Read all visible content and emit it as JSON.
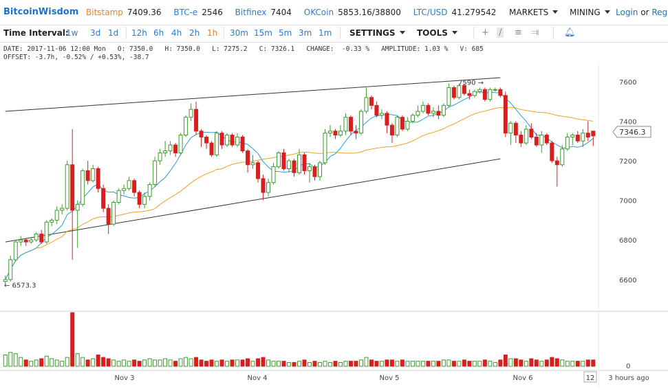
{
  "header": {
    "brand": "BitcoinWisdom",
    "tickers": [
      {
        "exchange": "Bitstamp",
        "price": "7409.36",
        "active": true
      },
      {
        "exchange": "BTC-e",
        "price": "2546",
        "active": false
      },
      {
        "exchange": "Bitfinex",
        "price": "7404",
        "active": false
      },
      {
        "exchange": "OKCoin",
        "price": "5853.16/38800",
        "active": false
      },
      {
        "exchange": "LTC/USD",
        "price": "41.279542",
        "active": false
      }
    ],
    "markets_label": "MARKETS",
    "mining_label": "MINING",
    "login_label": "Login",
    "or_label": "or",
    "register_label": "Regis"
  },
  "toolbar": {
    "interval_label": "Time Interval:",
    "intervals": [
      "1w",
      "3d",
      "1d",
      "12h",
      "6h",
      "4h",
      "2h",
      "1h",
      "30m",
      "15m",
      "5m",
      "3m",
      "1m"
    ],
    "active_interval": "1h",
    "settings_label": "SETTINGS",
    "tools_label": "TOOLS"
  },
  "info": {
    "line1": "DATE: 2017-11-06 12:00 Mon   O: 7350.0   H: 7350.0   L: 7275.2   C: 7326.1   CHANGE:  -0.33 %   AMPLITUDE: 1.03 %   V: 685",
    "line2": "OFFSET: -3.7h, -0.52% / +0.53%, -38.7"
  },
  "colors": {
    "up": "#3a9a2a",
    "down": "#d81e1e",
    "ma_fast": "#2a9bd8",
    "ma_slow": "#f0a020",
    "trend": "#333333",
    "accent": "#1a73c8",
    "active": "#f08020"
  },
  "chart_data": {
    "type": "candlestick",
    "y_ticks": [
      7600,
      7400,
      7200,
      7000,
      6800,
      6600
    ],
    "ylim": [
      6450,
      7700
    ],
    "x_labels": [
      "Nov 3",
      "Nov 4",
      "Nov 5",
      "Nov 6"
    ],
    "current_price": "7346.3",
    "low_marker": "6573.3",
    "high_marker": "7590",
    "volume_axis_label": "0",
    "time_badge": "12",
    "time_ago": "3 hours ago",
    "trendlines": [
      {
        "from": [
          0,
          7450
        ],
        "to": [
          96,
          7620
        ]
      },
      {
        "from": [
          0,
          6790
        ],
        "to": [
          96,
          7210
        ]
      }
    ],
    "candles": [
      {
        "o": 6590,
        "c": 6600,
        "h": 6620,
        "l": 6573,
        "v": 18
      },
      {
        "o": 6600,
        "c": 6700,
        "h": 6720,
        "l": 6590,
        "v": 22
      },
      {
        "o": 6700,
        "c": 6790,
        "h": 6800,
        "l": 6690,
        "v": 20
      },
      {
        "o": 6790,
        "c": 6800,
        "h": 6820,
        "l": 6770,
        "v": 14
      },
      {
        "o": 6800,
        "c": 6790,
        "h": 6810,
        "l": 6770,
        "v": 10
      },
      {
        "o": 6790,
        "c": 6800,
        "h": 6810,
        "l": 6780,
        "v": 8
      },
      {
        "o": 6800,
        "c": 6830,
        "h": 6840,
        "l": 6790,
        "v": 10
      },
      {
        "o": 6830,
        "c": 6790,
        "h": 6850,
        "l": 6780,
        "v": 12
      },
      {
        "o": 6790,
        "c": 6890,
        "h": 6900,
        "l": 6780,
        "v": 16
      },
      {
        "o": 6890,
        "c": 6900,
        "h": 6910,
        "l": 6870,
        "v": 12
      },
      {
        "o": 6900,
        "c": 6950,
        "h": 6970,
        "l": 6880,
        "v": 10
      },
      {
        "o": 6950,
        "c": 6960,
        "h": 6980,
        "l": 6930,
        "v": 8
      },
      {
        "o": 6960,
        "c": 7180,
        "h": 7200,
        "l": 6950,
        "v": 14
      },
      {
        "o": 7180,
        "c": 6950,
        "h": 7360,
        "l": 6700,
        "v": 85
      },
      {
        "o": 6950,
        "c": 6980,
        "h": 7000,
        "l": 6760,
        "v": 20
      },
      {
        "o": 6980,
        "c": 7150,
        "h": 7160,
        "l": 6970,
        "v": 14
      },
      {
        "o": 7150,
        "c": 7100,
        "h": 7200,
        "l": 7080,
        "v": 10
      },
      {
        "o": 7100,
        "c": 7160,
        "h": 7180,
        "l": 7090,
        "v": 12
      },
      {
        "o": 7160,
        "c": 7060,
        "h": 7170,
        "l": 7040,
        "v": 18
      },
      {
        "o": 7060,
        "c": 6960,
        "h": 7080,
        "l": 6940,
        "v": 14
      },
      {
        "o": 6960,
        "c": 6880,
        "h": 6980,
        "l": 6830,
        "v": 12
      },
      {
        "o": 6880,
        "c": 6990,
        "h": 7000,
        "l": 6870,
        "v": 10
      },
      {
        "o": 6990,
        "c": 7050,
        "h": 7060,
        "l": 6980,
        "v": 8
      },
      {
        "o": 7050,
        "c": 7060,
        "h": 7080,
        "l": 7030,
        "v": 10
      },
      {
        "o": 7060,
        "c": 7100,
        "h": 7120,
        "l": 7050,
        "v": 8
      },
      {
        "o": 7100,
        "c": 7040,
        "h": 7110,
        "l": 7020,
        "v": 10
      },
      {
        "o": 7040,
        "c": 6980,
        "h": 7050,
        "l": 6960,
        "v": 8
      },
      {
        "o": 6980,
        "c": 7020,
        "h": 7040,
        "l": 6960,
        "v": 10
      },
      {
        "o": 7020,
        "c": 7080,
        "h": 7090,
        "l": 7000,
        "v": 12
      },
      {
        "o": 7080,
        "c": 7200,
        "h": 7220,
        "l": 7070,
        "v": 10
      },
      {
        "o": 7200,
        "c": 7240,
        "h": 7260,
        "l": 7180,
        "v": 10
      },
      {
        "o": 7240,
        "c": 7250,
        "h": 7300,
        "l": 7220,
        "v": 12
      },
      {
        "o": 7250,
        "c": 7280,
        "h": 7300,
        "l": 7230,
        "v": 10
      },
      {
        "o": 7280,
        "c": 7240,
        "h": 7290,
        "l": 7220,
        "v": 8
      },
      {
        "o": 7240,
        "c": 7330,
        "h": 7340,
        "l": 7230,
        "v": 12
      },
      {
        "o": 7330,
        "c": 7420,
        "h": 7430,
        "l": 7320,
        "v": 14
      },
      {
        "o": 7420,
        "c": 7460,
        "h": 7490,
        "l": 7400,
        "v": 12
      },
      {
        "o": 7460,
        "c": 7350,
        "h": 7500,
        "l": 7330,
        "v": 14
      },
      {
        "o": 7350,
        "c": 7320,
        "h": 7360,
        "l": 7270,
        "v": 10
      },
      {
        "o": 7320,
        "c": 7290,
        "h": 7330,
        "l": 7260,
        "v": 8
      },
      {
        "o": 7290,
        "c": 7230,
        "h": 7300,
        "l": 7220,
        "v": 10
      },
      {
        "o": 7230,
        "c": 7340,
        "h": 7350,
        "l": 7220,
        "v": 8
      },
      {
        "o": 7340,
        "c": 7280,
        "h": 7350,
        "l": 7260,
        "v": 10
      },
      {
        "o": 7280,
        "c": 7330,
        "h": 7340,
        "l": 7270,
        "v": 8
      },
      {
        "o": 7330,
        "c": 7280,
        "h": 7340,
        "l": 7270,
        "v": 10
      },
      {
        "o": 7280,
        "c": 7320,
        "h": 7340,
        "l": 7270,
        "v": 10
      },
      {
        "o": 7320,
        "c": 7250,
        "h": 7330,
        "l": 7240,
        "v": 10
      },
      {
        "o": 7250,
        "c": 7180,
        "h": 7260,
        "l": 7140,
        "v": 12
      },
      {
        "o": 7180,
        "c": 7190,
        "h": 7230,
        "l": 7160,
        "v": 8
      },
      {
        "o": 7190,
        "c": 7110,
        "h": 7200,
        "l": 7090,
        "v": 12
      },
      {
        "o": 7110,
        "c": 7040,
        "h": 7130,
        "l": 7000,
        "v": 14
      },
      {
        "o": 7040,
        "c": 7090,
        "h": 7110,
        "l": 7020,
        "v": 10
      },
      {
        "o": 7090,
        "c": 7170,
        "h": 7190,
        "l": 7080,
        "v": 8
      },
      {
        "o": 7170,
        "c": 7240,
        "h": 7250,
        "l": 7160,
        "v": 8
      },
      {
        "o": 7240,
        "c": 7160,
        "h": 7260,
        "l": 7150,
        "v": 8
      },
      {
        "o": 7160,
        "c": 7200,
        "h": 7210,
        "l": 7140,
        "v": 6
      },
      {
        "o": 7200,
        "c": 7140,
        "h": 7210,
        "l": 7120,
        "v": 6
      },
      {
        "o": 7140,
        "c": 7230,
        "h": 7260,
        "l": 7130,
        "v": 8
      },
      {
        "o": 7230,
        "c": 7150,
        "h": 7240,
        "l": 7130,
        "v": 10
      },
      {
        "o": 7150,
        "c": 7170,
        "h": 7190,
        "l": 7090,
        "v": 6
      },
      {
        "o": 7170,
        "c": 7120,
        "h": 7180,
        "l": 7100,
        "v": 8
      },
      {
        "o": 7120,
        "c": 7190,
        "h": 7200,
        "l": 7100,
        "v": 6
      },
      {
        "o": 7190,
        "c": 7340,
        "h": 7360,
        "l": 7180,
        "v": 8
      },
      {
        "o": 7340,
        "c": 7350,
        "h": 7380,
        "l": 7320,
        "v": 6
      },
      {
        "o": 7350,
        "c": 7330,
        "h": 7360,
        "l": 7310,
        "v": 8
      },
      {
        "o": 7330,
        "c": 7350,
        "h": 7380,
        "l": 7320,
        "v": 6
      },
      {
        "o": 7350,
        "c": 7420,
        "h": 7440,
        "l": 7330,
        "v": 8
      },
      {
        "o": 7420,
        "c": 7350,
        "h": 7430,
        "l": 7330,
        "v": 8
      },
      {
        "o": 7350,
        "c": 7340,
        "h": 7380,
        "l": 7310,
        "v": 8
      },
      {
        "o": 7340,
        "c": 7450,
        "h": 7460,
        "l": 7330,
        "v": 10
      },
      {
        "o": 7450,
        "c": 7520,
        "h": 7570,
        "l": 7440,
        "v": 14
      },
      {
        "o": 7520,
        "c": 7480,
        "h": 7530,
        "l": 7460,
        "v": 10
      },
      {
        "o": 7480,
        "c": 7430,
        "h": 7500,
        "l": 7420,
        "v": 8
      },
      {
        "o": 7430,
        "c": 7440,
        "h": 7460,
        "l": 7410,
        "v": 8
      },
      {
        "o": 7440,
        "c": 7380,
        "h": 7450,
        "l": 7340,
        "v": 10
      },
      {
        "o": 7380,
        "c": 7330,
        "h": 7390,
        "l": 7290,
        "v": 10
      },
      {
        "o": 7330,
        "c": 7420,
        "h": 7430,
        "l": 7320,
        "v": 8
      },
      {
        "o": 7420,
        "c": 7360,
        "h": 7430,
        "l": 7350,
        "v": 10
      },
      {
        "o": 7360,
        "c": 7400,
        "h": 7420,
        "l": 7350,
        "v": 8
      },
      {
        "o": 7400,
        "c": 7430,
        "h": 7440,
        "l": 7390,
        "v": 8
      },
      {
        "o": 7430,
        "c": 7450,
        "h": 7480,
        "l": 7420,
        "v": 8
      },
      {
        "o": 7450,
        "c": 7480,
        "h": 7500,
        "l": 7440,
        "v": 8
      },
      {
        "o": 7480,
        "c": 7440,
        "h": 7490,
        "l": 7430,
        "v": 8
      },
      {
        "o": 7440,
        "c": 7450,
        "h": 7470,
        "l": 7420,
        "v": 8
      },
      {
        "o": 7450,
        "c": 7430,
        "h": 7480,
        "l": 7410,
        "v": 8
      },
      {
        "o": 7430,
        "c": 7480,
        "h": 7490,
        "l": 7420,
        "v": 10
      },
      {
        "o": 7480,
        "c": 7570,
        "h": 7590,
        "l": 7470,
        "v": 10
      },
      {
        "o": 7570,
        "c": 7520,
        "h": 7580,
        "l": 7510,
        "v": 8
      },
      {
        "o": 7520,
        "c": 7580,
        "h": 7590,
        "l": 7510,
        "v": 8
      },
      {
        "o": 7580,
        "c": 7540,
        "h": 7590,
        "l": 7530,
        "v": 10
      },
      {
        "o": 7540,
        "c": 7530,
        "h": 7560,
        "l": 7510,
        "v": 8
      },
      {
        "o": 7530,
        "c": 7550,
        "h": 7560,
        "l": 7520,
        "v": 8
      },
      {
        "o": 7550,
        "c": 7560,
        "h": 7570,
        "l": 7540,
        "v": 8
      },
      {
        "o": 7560,
        "c": 7510,
        "h": 7570,
        "l": 7500,
        "v": 10
      },
      {
        "o": 7510,
        "c": 7560,
        "h": 7570,
        "l": 7500,
        "v": 8
      },
      {
        "o": 7560,
        "c": 7560,
        "h": 7570,
        "l": 7550,
        "v": 6
      },
      {
        "o": 7560,
        "c": 7530,
        "h": 7570,
        "l": 7520,
        "v": 10
      },
      {
        "o": 7530,
        "c": 7340,
        "h": 7550,
        "l": 7320,
        "v": 18
      },
      {
        "o": 7340,
        "c": 7390,
        "h": 7400,
        "l": 7280,
        "v": 12
      },
      {
        "o": 7390,
        "c": 7330,
        "h": 7400,
        "l": 7290,
        "v": 12
      },
      {
        "o": 7330,
        "c": 7290,
        "h": 7350,
        "l": 7270,
        "v": 10
      },
      {
        "o": 7290,
        "c": 7360,
        "h": 7380,
        "l": 7280,
        "v": 8
      },
      {
        "o": 7360,
        "c": 7320,
        "h": 7390,
        "l": 7310,
        "v": 12
      },
      {
        "o": 7320,
        "c": 7280,
        "h": 7340,
        "l": 7270,
        "v": 10
      },
      {
        "o": 7280,
        "c": 7330,
        "h": 7350,
        "l": 7240,
        "v": 8
      },
      {
        "o": 7330,
        "c": 7290,
        "h": 7340,
        "l": 7280,
        "v": 10
      },
      {
        "o": 7290,
        "c": 7200,
        "h": 7300,
        "l": 7190,
        "v": 14
      },
      {
        "o": 7200,
        "c": 7180,
        "h": 7220,
        "l": 7070,
        "v": 12
      },
      {
        "o": 7180,
        "c": 7260,
        "h": 7280,
        "l": 7170,
        "v": 10
      },
      {
        "o": 7260,
        "c": 7320,
        "h": 7340,
        "l": 7250,
        "v": 8
      },
      {
        "o": 7320,
        "c": 7330,
        "h": 7340,
        "l": 7280,
        "v": 8
      },
      {
        "o": 7330,
        "c": 7300,
        "h": 7350,
        "l": 7290,
        "v": 8
      },
      {
        "o": 7300,
        "c": 7340,
        "h": 7360,
        "l": 7270,
        "v": 8
      },
      {
        "o": 7340,
        "c": 7320,
        "h": 7400,
        "l": 7300,
        "v": 10
      },
      {
        "o": 7350,
        "c": 7326,
        "h": 7350,
        "l": 7275,
        "v": 10
      }
    ]
  }
}
